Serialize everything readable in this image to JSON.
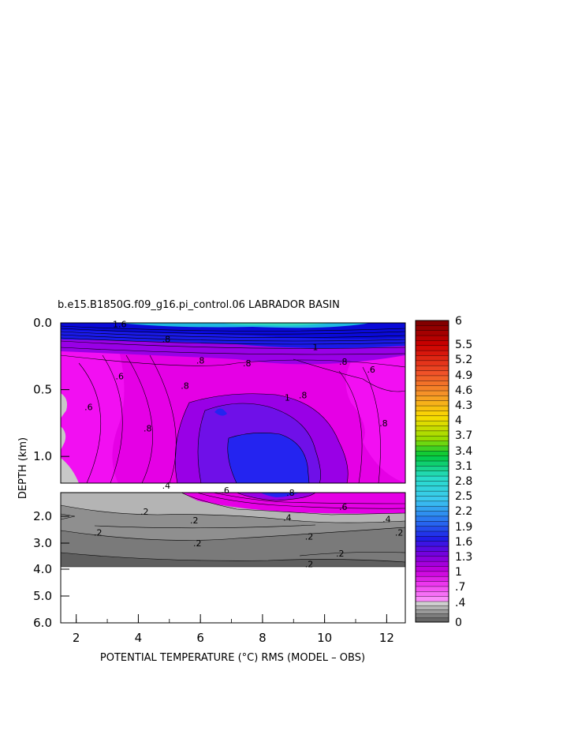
{
  "chart_data": {
    "type": "heatmap",
    "title": "b.e15.B1850G.f09_g16.pi_control.06 LABRADOR BASIN",
    "xlabel": "POTENTIAL TEMPERATURE (°C) RMS (MODEL – OBS)",
    "ylabel": "DEPTH (km)",
    "xlim": [
      1.5,
      12.6
    ],
    "x_ticks": [
      "2",
      "4",
      "6",
      "8",
      "10",
      "12"
    ],
    "y_ticks_upper": [
      "0.0",
      "0.5",
      "1.0"
    ],
    "y_ticks_lower": [
      "2.0",
      "3.0",
      "4.0",
      "5.0",
      "6.0"
    ],
    "colorbar_labels": [
      "6",
      "5.5",
      "5.2",
      "4.9",
      "4.6",
      "4.3",
      "4",
      "3.7",
      "3.4",
      "3.1",
      "2.8",
      "2.5",
      "2.2",
      "1.9",
      "1.6",
      "1.3",
      "1",
      ".7",
      ".4",
      "0"
    ],
    "contour_labels": [
      {
        "text": "1.6",
        "x": 3.4,
        "depth": 0.01
      },
      {
        "text": ".8",
        "x": 4.9,
        "depth": 0.12
      },
      {
        "text": ".8",
        "x": 6.0,
        "depth": 0.28
      },
      {
        "text": ".8",
        "x": 7.5,
        "depth": 0.3
      },
      {
        "text": ".8",
        "x": 10.6,
        "depth": 0.29
      },
      {
        "text": "1",
        "x": 9.7,
        "depth": 0.18
      },
      {
        "text": ".6",
        "x": 3.4,
        "depth": 0.4
      },
      {
        "text": ".6",
        "x": 11.5,
        "depth": 0.35
      },
      {
        "text": ".8",
        "x": 5.5,
        "depth": 0.47
      },
      {
        "text": ".8",
        "x": 9.3,
        "depth": 0.54
      },
      {
        "text": "1",
        "x": 8.8,
        "depth": 0.56
      },
      {
        "text": ".6",
        "x": 2.4,
        "depth": 0.63
      },
      {
        "text": ".8",
        "x": 4.3,
        "depth": 0.79
      },
      {
        "text": ".8",
        "x": 11.9,
        "depth": 0.75
      },
      {
        "text": ".4",
        "x": 4.9,
        "depth": 1.35
      },
      {
        "text": ".6",
        "x": 6.8,
        "depth": 1.45
      },
      {
        "text": ".8",
        "x": 8.9,
        "depth": 1.5
      },
      {
        "text": ".6",
        "x": 10.6,
        "depth": 1.8
      },
      {
        "text": ".4",
        "x": 8.8,
        "depth": 2.05
      },
      {
        "text": ".4",
        "x": 12.0,
        "depth": 2.1
      },
      {
        "text": ".2",
        "x": 4.2,
        "depth": 1.9
      },
      {
        "text": ".2",
        "x": 5.8,
        "depth": 2.15
      },
      {
        "text": ".2",
        "x": 2.7,
        "depth": 2.6
      },
      {
        "text": ".2",
        "x": 5.9,
        "depth": 3.0
      },
      {
        "text": ".2",
        "x": 9.5,
        "depth": 2.75
      },
      {
        "text": ".2",
        "x": 12.4,
        "depth": 2.6
      },
      {
        "text": ".2",
        "x": 10.5,
        "depth": 3.4
      },
      {
        "text": ".2",
        "x": 9.5,
        "depth": 3.8
      }
    ],
    "colors": {
      "magenta": "#e500e5",
      "magenta_light": "#f20ff2",
      "violet": "#9900e6",
      "indigo": "#6f10e8",
      "blue": "#2424f0",
      "deep_blue": "#0d0de0",
      "light_gray": "#b4b4b4",
      "mid_gray": "#8f8f8f",
      "dark_gray": "#6d6d6d"
    }
  }
}
